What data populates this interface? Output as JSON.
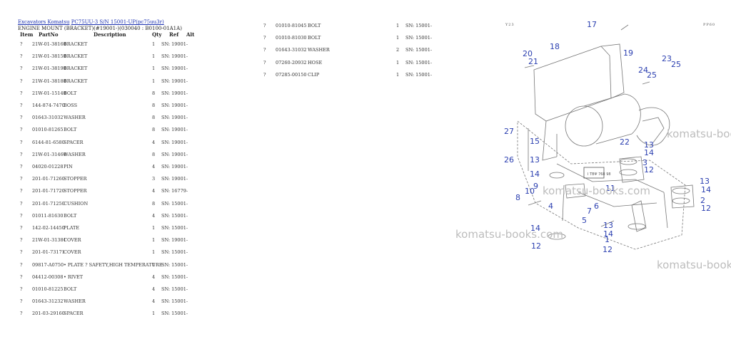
{
  "header": {
    "breadcrumb": [
      {
        "label": "Excavators Komatsu"
      },
      {
        "label": "PC75UU-3 S/N 15001-UP(pc75uu3r)"
      }
    ],
    "title": "ENGINE MOUNT (BRACKET)(#19001-)(030040 : B0100-01A1A)"
  },
  "columns": {
    "item": "Item",
    "part_no": "PartNo",
    "description": "Description",
    "qty": "Qty",
    "ref": "Ref",
    "alt": "Alt"
  },
  "parts_left": [
    {
      "item": "?",
      "part_no": "21W-01-38160",
      "description": "BRACKET",
      "qty": "1",
      "sn": "SN: 19001-"
    },
    {
      "item": "?",
      "part_no": "21W-01-38150",
      "description": "BRACKET",
      "qty": "1",
      "sn": "SN: 19001-"
    },
    {
      "item": "?",
      "part_no": "21W-01-38190",
      "description": "BRACKET",
      "qty": "1",
      "sn": "SN: 19001-"
    },
    {
      "item": "?",
      "part_no": "21W-01-38180",
      "description": "BRACKET",
      "qty": "1",
      "sn": "SN: 19001-"
    },
    {
      "item": "?",
      "part_no": "21W-01-15140",
      "description": "BOLT",
      "qty": "8",
      "sn": "SN: 19001-"
    },
    {
      "item": "?",
      "part_no": "144-874-7470",
      "description": "BOSS",
      "qty": "8",
      "sn": "SN: 19001-"
    },
    {
      "item": "?",
      "part_no": "01643-31032",
      "description": "WASHER",
      "qty": "8",
      "sn": "SN: 19001-"
    },
    {
      "item": "?",
      "part_no": "01010-81265",
      "description": "BOLT",
      "qty": "8",
      "sn": "SN: 19001-"
    },
    {
      "item": "?",
      "part_no": "6144-81-6580",
      "description": "SPACER",
      "qty": "4",
      "sn": "SN: 19001-"
    },
    {
      "item": "?",
      "part_no": "21W-01-31460",
      "description": "WASHER",
      "qty": "8",
      "sn": "SN: 19001-"
    },
    {
      "item": "?",
      "part_no": "04020-01228",
      "description": "PIN",
      "qty": "4",
      "sn": "SN: 19001-"
    },
    {
      "item": "?",
      "part_no": "201-01-71260",
      "description": "STOPPER",
      "qty": "3",
      "sn": "SN: 19001-"
    },
    {
      "item": "?",
      "part_no": "201-01-71720",
      "description": "STOPPER",
      "qty": "4",
      "sn": "SN: 16779-"
    },
    {
      "item": "?",
      "part_no": "201-01-71250",
      "description": "CUSHION",
      "qty": "8",
      "sn": "SN: 15001-"
    },
    {
      "item": "?",
      "part_no": "01011-81630",
      "description": "BOLT",
      "qty": "4",
      "sn": "SN: 15001-"
    },
    {
      "item": "?",
      "part_no": "142-02-14450",
      "description": "PLATE",
      "qty": "1",
      "sn": "SN: 15001-"
    },
    {
      "item": "?",
      "part_no": "21W-01-31381",
      "description": "COVER",
      "qty": "1",
      "sn": "SN: 19001-"
    },
    {
      "item": "?",
      "part_no": "201-01-73171",
      "description": "COVER",
      "qty": "1",
      "sn": "SN: 15001-"
    },
    {
      "item": "?",
      "part_no": "09817-A0750",
      "description": "• PLATE ? SAFETY,HIGH TEMPERATURE",
      "qty": "1",
      "sn": "SN: 15001-"
    },
    {
      "item": "?",
      "part_no": "04412-00308",
      "description": "• RIVET",
      "qty": "4",
      "sn": "SN: 15001-"
    },
    {
      "item": "?",
      "part_no": "01010-81225",
      "description": "BOLT",
      "qty": "4",
      "sn": "SN: 15001-"
    },
    {
      "item": "?",
      "part_no": "01643-31232",
      "description": "WASHER",
      "qty": "4",
      "sn": "SN: 15001-"
    },
    {
      "item": "?",
      "part_no": "201-03-29160",
      "description": "SPACER",
      "qty": "1",
      "sn": "SN: 15001-"
    }
  ],
  "parts_right": [
    {
      "item": "?",
      "part_no": "01010-81045",
      "description": "BOLT",
      "qty": "1",
      "sn": "SN: 15001-"
    },
    {
      "item": "?",
      "part_no": "01010-81030",
      "description": "BOLT",
      "qty": "1",
      "sn": "SN: 15001-"
    },
    {
      "item": "?",
      "part_no": "01643-31032",
      "description": "WASHER",
      "qty": "2",
      "sn": "SN: 15001-"
    },
    {
      "item": "?",
      "part_no": "07260-20932",
      "description": "HOSE",
      "qty": "1",
      "sn": "SN: 15001-"
    },
    {
      "item": "?",
      "part_no": "07285-00150",
      "description": "CLIP",
      "qty": "1",
      "sn": "SN: 15001-"
    }
  ],
  "diagram": {
    "corner_left": "Y23",
    "corner_right": "PP60",
    "plate_text": "Ι ΤΒΨ\n768 98",
    "watermark": "komatsu-books.com",
    "callouts": [
      "17",
      "18",
      "19",
      "20",
      "21",
      "23",
      "25",
      "24",
      "25",
      "27",
      "15",
      "22",
      "13",
      "14",
      "3",
      "12",
      "26",
      "13",
      "14",
      "9",
      "10",
      "8",
      "11",
      "13",
      "14",
      "2",
      "12",
      "4",
      "7",
      "6",
      "14",
      "5",
      "13",
      "14",
      "1",
      "12",
      "12"
    ]
  }
}
